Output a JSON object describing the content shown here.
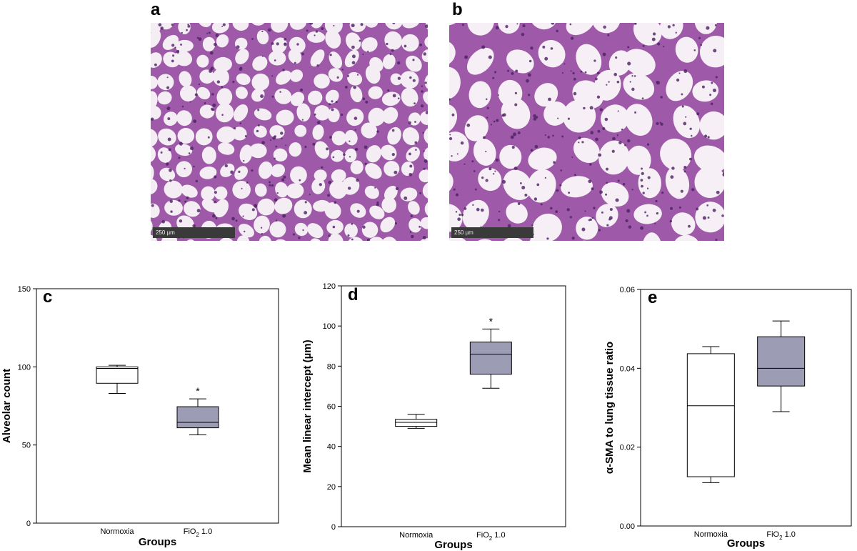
{
  "panels": {
    "a": "a",
    "b": "b",
    "c": "c",
    "d": "d",
    "e": "e"
  },
  "micrographs": [
    {
      "id": "a",
      "scale_label": "250 µm",
      "tissue_color": "#8e3f9a",
      "background_color": "#f4eef4"
    },
    {
      "id": "b",
      "scale_label": "250 µm",
      "tissue_color": "#8e3f9a",
      "background_color": "#f6f0f6"
    }
  ],
  "colors": {
    "box_normoxia": "#ffffff",
    "box_hyperoxia": "#9c9db5",
    "line": "#000000"
  },
  "chart_data": [
    {
      "id": "c",
      "type": "box",
      "ylabel": "Alveolar count",
      "xlabel": "Groups",
      "ylim": [
        0,
        150
      ],
      "yticks": [
        0,
        50,
        100,
        150
      ],
      "yticklabels": [
        "0",
        "50",
        "100",
        "150"
      ],
      "categories": [
        "Normoxia",
        "FiO2 1.0"
      ],
      "category_display": [
        {
          "main": "Normoxia",
          "sub": "",
          "tail": ""
        },
        {
          "main": "FiO",
          "sub": "2",
          "tail": " 1.0"
        }
      ],
      "boxes": [
        {
          "whisker_low": 83,
          "q1": 89.5,
          "median": 99,
          "q3": 100,
          "whisker_high": 101
        },
        {
          "whisker_low": 56.5,
          "q1": 61,
          "median": 64.5,
          "q3": 74.5,
          "whisker_high": 79.5
        }
      ],
      "significance": [
        "",
        "*"
      ]
    },
    {
      "id": "d",
      "type": "box",
      "ylabel": "Mean linear intercept (µm)",
      "xlabel": "Groups",
      "ylim": [
        0,
        120
      ],
      "yticks": [
        0,
        20,
        40,
        60,
        80,
        100,
        120
      ],
      "yticklabels": [
        "0",
        "20",
        "40",
        "60",
        "80",
        "100",
        "120"
      ],
      "categories": [
        "Normoxia",
        "FiO2 1.0"
      ],
      "category_display": [
        {
          "main": "Normoxia",
          "sub": "",
          "tail": ""
        },
        {
          "main": "FiO",
          "sub": "2",
          "tail": " 1.0"
        }
      ],
      "boxes": [
        {
          "whisker_low": 49,
          "q1": 50,
          "median": 52,
          "q3": 53.5,
          "whisker_high": 56
        },
        {
          "whisker_low": 69,
          "q1": 76,
          "median": 86,
          "q3": 92,
          "whisker_high": 98.5
        }
      ],
      "significance": [
        "",
        "*"
      ]
    },
    {
      "id": "e",
      "type": "box",
      "ylabel": "α-SMA to lung tissue ratio",
      "xlabel": "Groups",
      "ylim": [
        0,
        0.06
      ],
      "yticks": [
        0,
        0.02,
        0.04,
        0.06
      ],
      "yticklabels": [
        "0.00",
        "0.02",
        "0.04",
        "0.06"
      ],
      "categories": [
        "Normoxia",
        "FiO2 1.0"
      ],
      "category_display": [
        {
          "main": "Normoxia",
          "sub": "",
          "tail": ""
        },
        {
          "main": "FiO",
          "sub": "2",
          "tail": " 1.0"
        }
      ],
      "boxes": [
        {
          "whisker_low": 0.011,
          "q1": 0.0125,
          "median": 0.0305,
          "q3": 0.0437,
          "whisker_high": 0.0455
        },
        {
          "whisker_low": 0.029,
          "q1": 0.0355,
          "median": 0.04,
          "q3": 0.048,
          "whisker_high": 0.052
        }
      ],
      "significance": [
        "",
        ""
      ]
    }
  ]
}
